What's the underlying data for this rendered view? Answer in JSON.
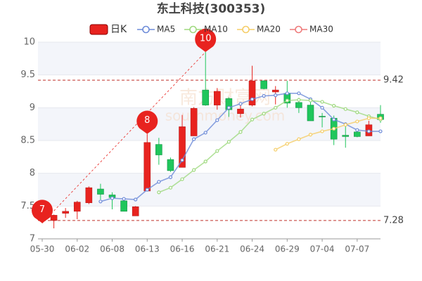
{
  "chart_data": {
    "type": "candlestick",
    "title": "东土科技(300353)",
    "categories": [
      "05-30",
      null,
      null,
      "06-02",
      null,
      null,
      "06-08",
      null,
      null,
      "06-13",
      null,
      null,
      "06-16",
      null,
      null,
      "06-21",
      null,
      null,
      "06-24",
      null,
      null,
      "06-29",
      null,
      null,
      "07-04",
      null,
      null,
      "07-07",
      null,
      null
    ],
    "candle_name": "日K",
    "up_color": "#e8231f",
    "down_color": "#20c65c",
    "open": [
      7.3,
      7.28,
      7.39,
      7.42,
      7.55,
      7.76,
      7.67,
      7.58,
      7.35,
      7.73,
      8.44,
      8.21,
      8.09,
      8.57,
      9.27,
      9.04,
      9.14,
      8.91,
      9.04,
      9.41,
      9.24,
      9.22,
      9.08,
      9.04,
      8.87,
      8.84,
      8.58,
      8.63,
      8.57,
      8.9
    ],
    "high": [
      7.4,
      7.37,
      7.47,
      7.58,
      7.8,
      7.84,
      7.71,
      7.61,
      7.5,
      8.6,
      8.54,
      8.24,
      8.89,
      9.01,
      9.85,
      9.3,
      9.16,
      9.05,
      9.64,
      9.42,
      9.33,
      9.41,
      9.15,
      9.13,
      8.92,
      8.88,
      8.72,
      8.66,
      8.8,
      9.04
    ],
    "low": [
      7.24,
      7.16,
      7.32,
      7.3,
      7.53,
      7.6,
      7.45,
      7.42,
      7.35,
      7.73,
      8.13,
      8.02,
      8.09,
      8.57,
      9.03,
      8.97,
      8.86,
      8.85,
      9.02,
      9.28,
      9.05,
      9.0,
      8.92,
      8.8,
      8.7,
      8.43,
      8.39,
      8.55,
      8.57,
      8.77
    ],
    "close": [
      7.35,
      7.36,
      7.42,
      7.56,
      7.78,
      7.68,
      7.63,
      7.42,
      7.49,
      8.47,
      8.28,
      8.04,
      8.71,
      8.99,
      9.04,
      9.25,
      8.97,
      8.98,
      9.41,
      9.29,
      9.27,
      9.07,
      9.0,
      8.8,
      8.86,
      8.52,
      8.56,
      8.56,
      8.74,
      8.82
    ],
    "series": [
      {
        "name": "MA5",
        "color": "#6d8bd8",
        "values": [
          null,
          null,
          null,
          null,
          null,
          7.57,
          7.62,
          7.61,
          7.6,
          7.75,
          7.87,
          7.94,
          8.2,
          8.52,
          8.62,
          8.81,
          9.0,
          9.06,
          9.13,
          9.18,
          9.19,
          9.22,
          9.22,
          9.13,
          9.0,
          8.82,
          8.75,
          8.66,
          8.64,
          8.64
        ]
      },
      {
        "name": "MA10",
        "color": "#9fd97f",
        "values": [
          null,
          null,
          null,
          null,
          null,
          null,
          null,
          null,
          null,
          null,
          7.71,
          7.78,
          7.91,
          8.05,
          8.18,
          8.34,
          8.48,
          8.63,
          8.82,
          8.91,
          9.0,
          9.11,
          9.12,
          9.11,
          9.09,
          9.03,
          8.98,
          8.93,
          8.87,
          8.82
        ]
      },
      {
        "name": "MA20",
        "color": "#f5cd66",
        "values": [
          null,
          null,
          null,
          null,
          null,
          null,
          null,
          null,
          null,
          null,
          null,
          null,
          null,
          null,
          null,
          null,
          null,
          null,
          null,
          null,
          8.36,
          8.45,
          8.52,
          8.59,
          8.64,
          8.68,
          8.74,
          8.79,
          8.84,
          8.84
        ]
      },
      {
        "name": "MA30",
        "color": "#ee7a7a",
        "values": [
          null,
          null,
          null,
          null,
          null,
          null,
          null,
          null,
          null,
          null,
          null,
          null,
          null,
          null,
          null,
          null,
          null,
          null,
          null,
          null,
          null,
          null,
          null,
          null,
          null,
          null,
          null,
          null,
          null,
          null
        ]
      }
    ],
    "ylim": [
      7,
      10
    ],
    "yticks": [
      7,
      7.5,
      8,
      8.5,
      9,
      9.5,
      10
    ],
    "reference_lines": [
      {
        "value": 9.42,
        "label": "9.42"
      },
      {
        "value": 7.28,
        "label": "7.28"
      }
    ],
    "markers": [
      {
        "label": "7",
        "index": 0,
        "value": 7.24
      },
      {
        "label": "8",
        "index": 9,
        "value": 8.6
      },
      {
        "label": "10",
        "index": 14,
        "value": 9.85
      }
    ],
    "watermark": [
      "南方财富网",
      "southmoney.com"
    ]
  }
}
